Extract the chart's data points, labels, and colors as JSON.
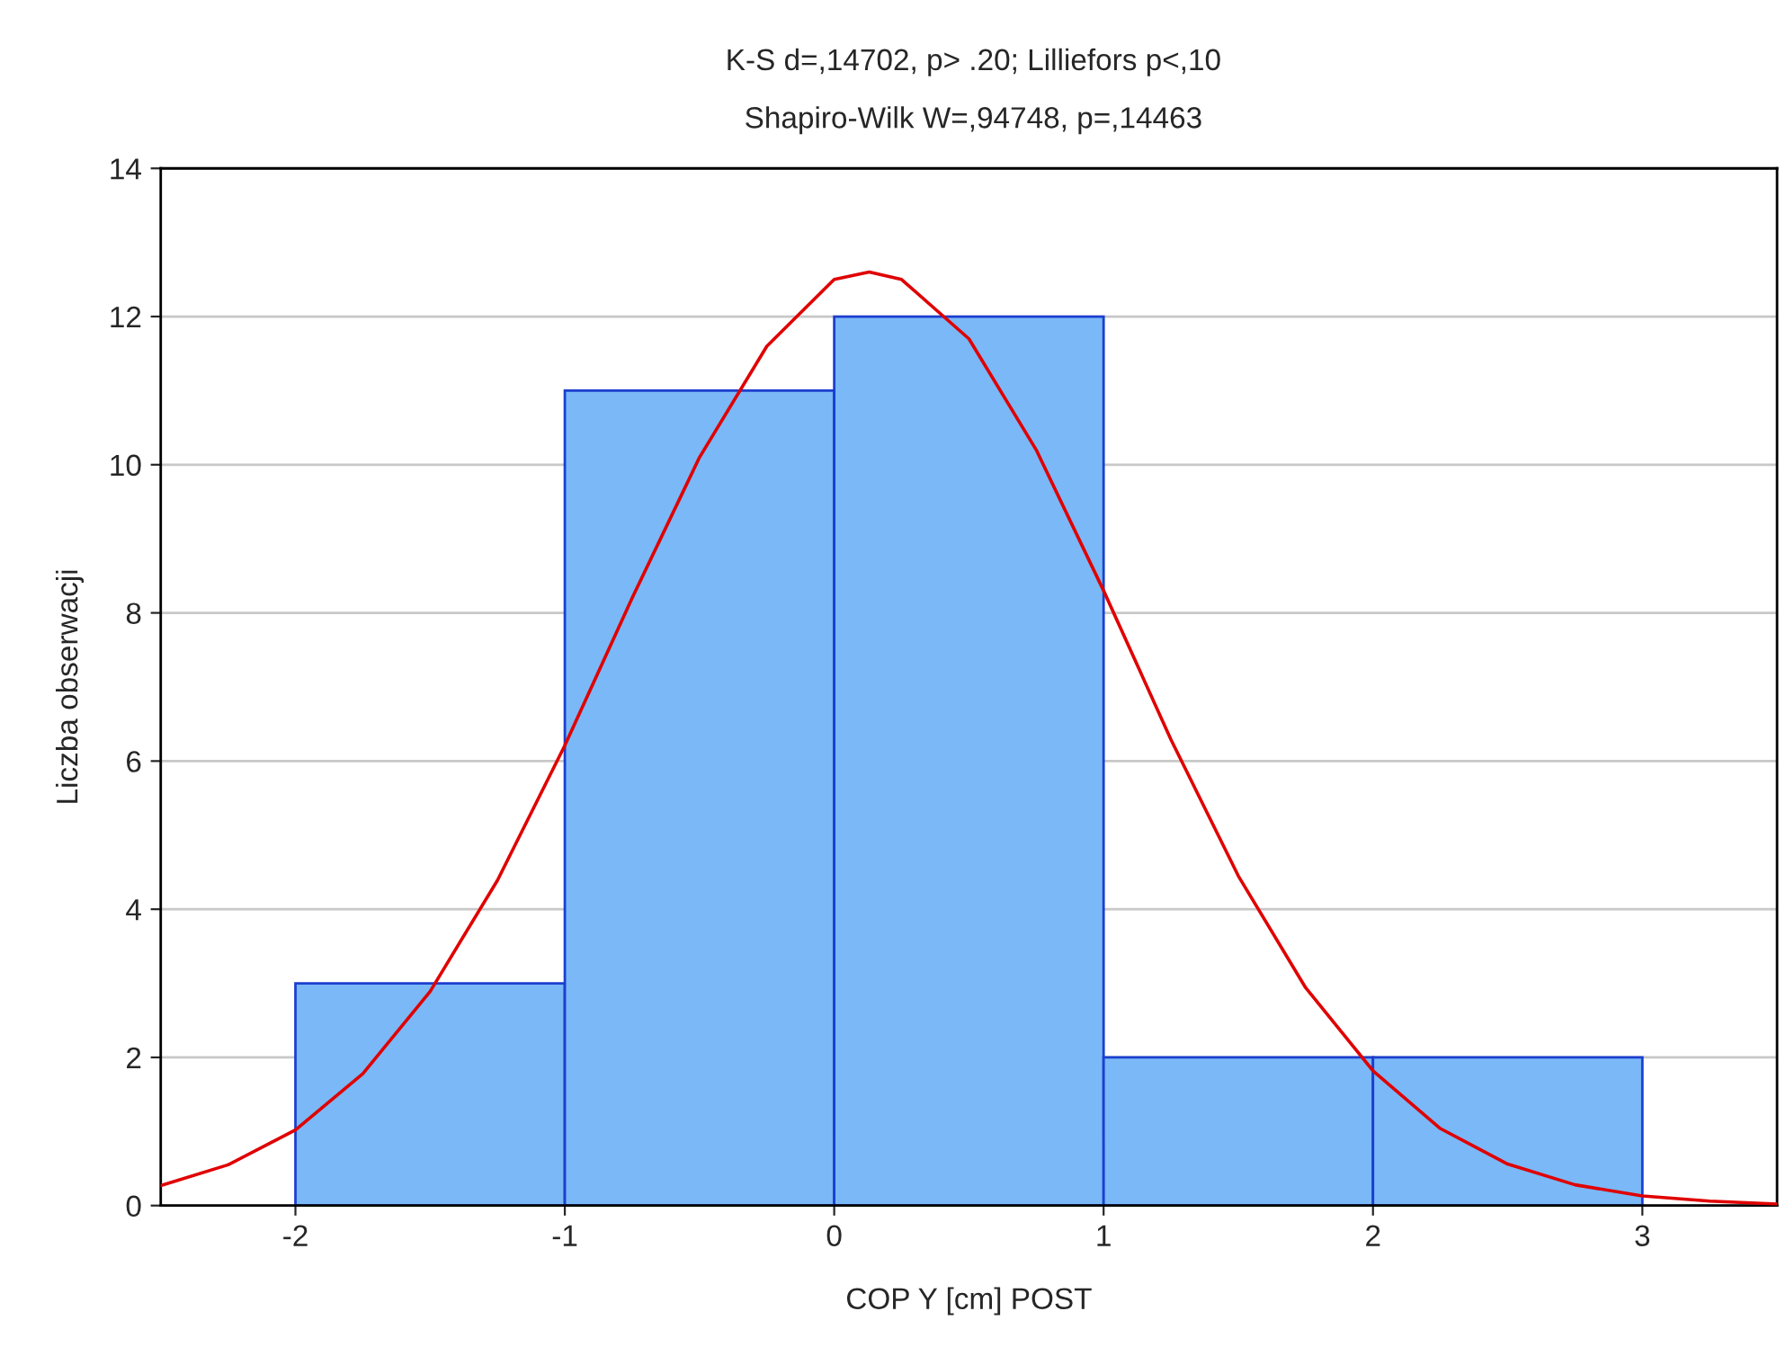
{
  "chart_data": {
    "type": "histogram",
    "title": "K-S d=,14702, p> .20; Lilliefors p<,10",
    "subtitle": "Shapiro-Wilk W=,94748, p=,14463",
    "xlabel": "COP Y [cm] POST",
    "ylabel": "Liczba obserwacji",
    "series": [
      {
        "bins": [
          -2,
          -1,
          0,
          1,
          2,
          3
        ],
        "values": [
          3,
          11,
          12,
          2,
          2
        ],
        "color": "#7ab8f7"
      },
      {
        "type": "line",
        "color": "#e00000",
        "x": [
          -2.5,
          -2.25,
          -2,
          -1.75,
          -1.5,
          -1.25,
          -1,
          -0.75,
          -0.5,
          -0.25,
          0,
          0.13,
          0.25,
          0.5,
          0.75,
          1,
          1.25,
          1.5,
          1.75,
          2,
          2.25,
          2.5,
          2.75,
          3,
          3.25,
          3.5
        ],
        "values": [
          0.27,
          0.55,
          1.02,
          1.78,
          2.89,
          4.39,
          6.21,
          8.2,
          10.1,
          11.6,
          12.5,
          12.6,
          12.5,
          11.7,
          10.2,
          8.3,
          6.29,
          4.45,
          2.94,
          1.82,
          1.04,
          0.56,
          0.28,
          0.13,
          0.06,
          0.02
        ]
      }
    ],
    "xlim": [
      -2.5,
      3.5
    ],
    "ylim": [
      0,
      14
    ],
    "xticks": [
      -2,
      -1,
      0,
      1,
      2,
      3
    ],
    "yticks": [
      0,
      2,
      4,
      6,
      8,
      10,
      12,
      14
    ],
    "grid": "y"
  }
}
